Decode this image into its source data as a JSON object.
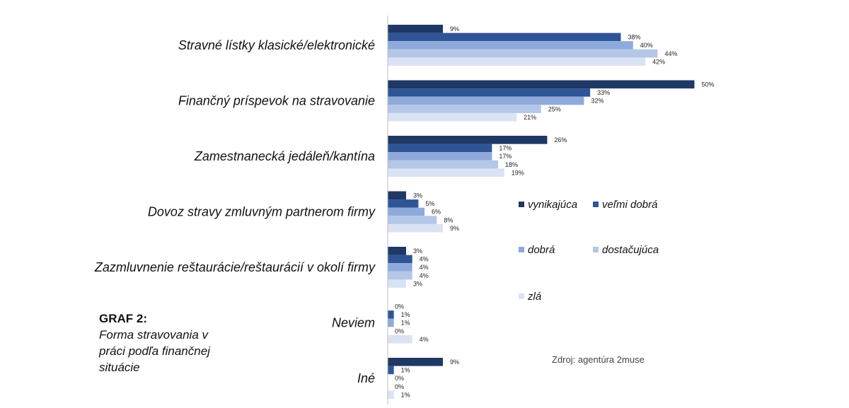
{
  "chart_data": {
    "type": "bar",
    "orientation": "horizontal",
    "categories": [
      "Stravné lístky klasické/elektronické",
      "Finančný príspevok na stravovanie",
      "Zamestnanecká jedáleň/kantína",
      "Dovoz stravy zmluvným partnerom firmy",
      "Zazmluvnenie reštaurácie/reštaurácií v okolí firmy",
      "Neviem",
      "Iné"
    ],
    "series": [
      {
        "name": "vynikajúca",
        "color": "#1f3864",
        "values": [
          9,
          50,
          26,
          3,
          3,
          0,
          9
        ]
      },
      {
        "name": "veľmi dobrá",
        "color": "#2f5597",
        "values": [
          38,
          33,
          17,
          5,
          4,
          1,
          1
        ]
      },
      {
        "name": "dobrá",
        "color": "#8eaadb",
        "values": [
          40,
          32,
          17,
          6,
          4,
          1,
          0
        ]
      },
      {
        "name": "dostačujúca",
        "color": "#b4c7e7",
        "values": [
          44,
          25,
          18,
          8,
          4,
          0,
          0
        ]
      },
      {
        "name": "zlá",
        "color": "#dae3f3",
        "values": [
          42,
          21,
          19,
          9,
          3,
          4,
          1
        ]
      }
    ],
    "value_suffix": "%",
    "xlim": [
      0,
      50
    ],
    "grid": false,
    "legend_position": "right"
  },
  "caption": {
    "title": "GRAF 2:",
    "subtitle": "Forma stravovania v práci podľa finančnej situácie"
  },
  "source": "Zdroj: agentúra 2muse"
}
